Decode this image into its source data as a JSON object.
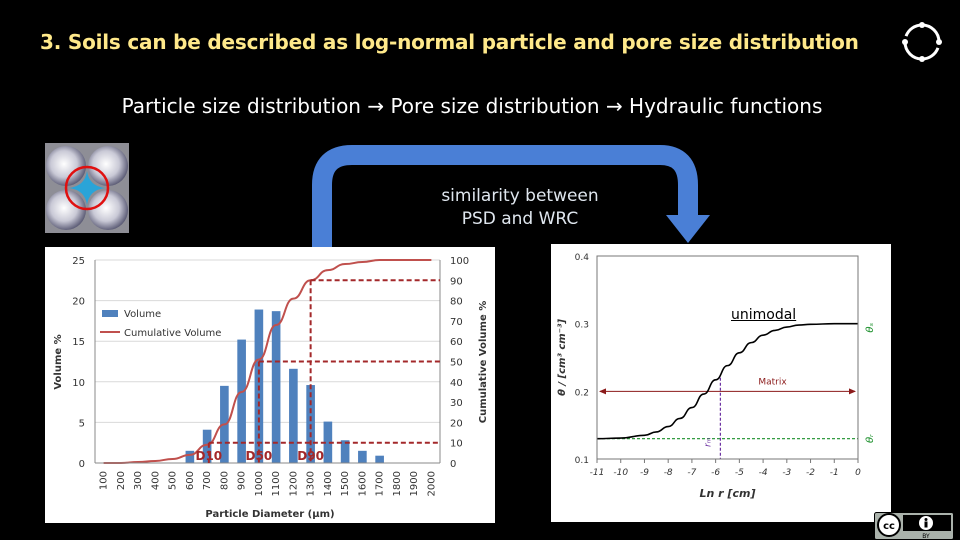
{
  "slide": {
    "title": "3. Soils can be described as log-normal particle and pore size distribution",
    "subtitle": "Particle size distribution → Pore size distribution → Hydraulic functions",
    "arrow_note": [
      "similarity between",
      "PSD and WRC"
    ],
    "arrow_color": "#4a7fd6",
    "title_color": "#ffe98a"
  },
  "icons": {
    "reload": "reload-icon",
    "pore_diagram": "pore-space-diagram",
    "license": "cc-by-icon",
    "license_label": "BY"
  },
  "chart_data": [
    {
      "type": "bar",
      "title": "",
      "xlabel": "Particle Diameter (μm)",
      "ylabel": "Volume %",
      "y2label": "Cumulative Volume %",
      "ylim": [
        0,
        25
      ],
      "y2lim": [
        0,
        100
      ],
      "yticks": [
        0,
        5,
        10,
        15,
        20,
        25
      ],
      "y2ticks": [
        0,
        10,
        20,
        30,
        40,
        50,
        60,
        70,
        80,
        90,
        100
      ],
      "categories": [
        "100",
        "200",
        "300",
        "400",
        "500",
        "600",
        "700",
        "800",
        "900",
        "1000",
        "1100",
        "1200",
        "1300",
        "1400",
        "1500",
        "1600",
        "1700",
        "1800",
        "1900",
        "2000"
      ],
      "legend_placement": "top-left",
      "series": [
        {
          "name": "Volume",
          "kind": "bar",
          "color": "#4f81bd",
          "values": [
            0,
            0,
            0,
            0,
            0,
            1.5,
            4.1,
            9.5,
            15.2,
            18.9,
            18.7,
            11.6,
            9.6,
            5.1,
            2.8,
            1.5,
            0.9,
            0,
            0,
            0
          ]
        },
        {
          "name": "Cumulative Volume",
          "kind": "line",
          "color": "#c0504d",
          "x": [
            100,
            200,
            300,
            400,
            500,
            600,
            700,
            800,
            900,
            1000,
            1100,
            1200,
            1300,
            1400,
            1500,
            1600,
            1700,
            1800,
            1900,
            2000
          ],
          "values": [
            0,
            0,
            0.5,
            1,
            2,
            4,
            9,
            19,
            35,
            51,
            68,
            81,
            90,
            95,
            98,
            99,
            100,
            100,
            100,
            100
          ]
        }
      ],
      "markers": [
        {
          "label": "D10",
          "x": 710,
          "cum": 10
        },
        {
          "label": "D50",
          "x": 1000,
          "cum": 50
        },
        {
          "label": "D90",
          "x": 1300,
          "cum": 90
        }
      ]
    },
    {
      "type": "line",
      "title": "",
      "xlabel": "Ln r [cm]",
      "ylabel": "θ / [cm³ cm⁻³]",
      "xlim": [
        -11,
        0
      ],
      "ylim": [
        0.1,
        0.4
      ],
      "xticks": [
        -11,
        -10,
        -9,
        -8,
        -7,
        -6,
        -5,
        -4,
        -3,
        -2,
        -1,
        0
      ],
      "yticks": [
        0.1,
        0.2,
        0.3,
        0.4
      ],
      "annotation": "unimodal",
      "matrix_label": "Matrix",
      "rm_label": "rₘ",
      "theta_s_label": "θₛ",
      "theta_r_label": "θᵣ",
      "theta_s": 0.3,
      "theta_r": 0.13,
      "rm_x": -5.8,
      "series": [
        {
          "name": "",
          "color": "#000000",
          "x": [
            -11,
            -10,
            -9,
            -8.5,
            -8,
            -7.5,
            -7,
            -6.5,
            -6,
            -5.5,
            -5,
            -4.5,
            -4,
            -3.5,
            -3,
            -2.5,
            -2,
            -1,
            0
          ],
          "values": [
            0.13,
            0.131,
            0.135,
            0.14,
            0.148,
            0.16,
            0.176,
            0.196,
            0.217,
            0.238,
            0.257,
            0.272,
            0.283,
            0.29,
            0.295,
            0.298,
            0.299,
            0.3,
            0.3
          ]
        }
      ]
    }
  ]
}
